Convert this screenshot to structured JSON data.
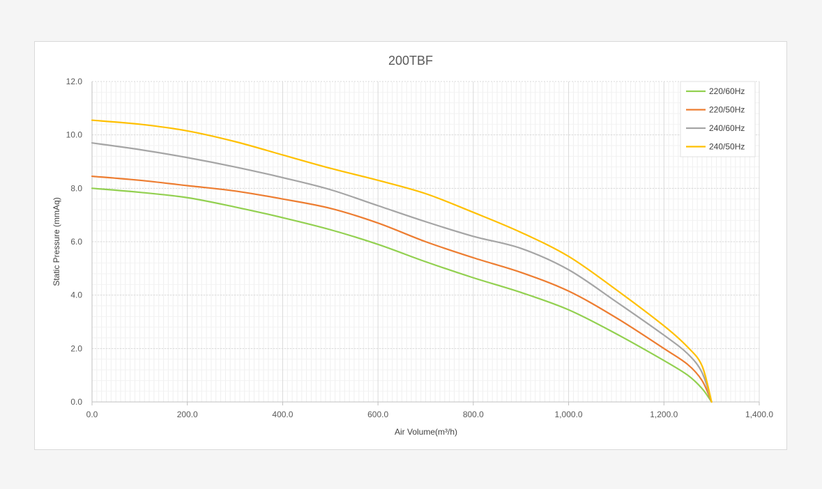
{
  "chart_data": {
    "type": "line",
    "title": "200TBF",
    "xlabel": "Air Volume(m³/h)",
    "ylabel": "Static Pressure (mmAq)",
    "xlim": [
      0,
      1400
    ],
    "ylim": [
      0,
      12
    ],
    "x_ticks": [
      "0.0",
      "200.0",
      "400.0",
      "600.0",
      "800.0",
      "1,000.0",
      "1,200.0",
      "1,400.0"
    ],
    "y_ticks": [
      "0.0",
      "2.0",
      "4.0",
      "6.0",
      "8.0",
      "10.0",
      "12.0"
    ],
    "grid": true,
    "legend_position": "top-right",
    "series": [
      {
        "name": "220/60Hz",
        "color": "#92d050",
        "points": [
          [
            0,
            8.0
          ],
          [
            100,
            7.85
          ],
          [
            200,
            7.65
          ],
          [
            300,
            7.3
          ],
          [
            400,
            6.9
          ],
          [
            500,
            6.45
          ],
          [
            600,
            5.9
          ],
          [
            700,
            5.25
          ],
          [
            800,
            4.65
          ],
          [
            900,
            4.1
          ],
          [
            1000,
            3.45
          ],
          [
            1100,
            2.55
          ],
          [
            1200,
            1.55
          ],
          [
            1250,
            1.0
          ],
          [
            1280,
            0.5
          ],
          [
            1300,
            0.0
          ]
        ]
      },
      {
        "name": "220/50Hz",
        "color": "#ed7d31",
        "points": [
          [
            0,
            8.45
          ],
          [
            100,
            8.3
          ],
          [
            200,
            8.1
          ],
          [
            300,
            7.9
          ],
          [
            400,
            7.6
          ],
          [
            500,
            7.25
          ],
          [
            600,
            6.7
          ],
          [
            700,
            6.0
          ],
          [
            800,
            5.4
          ],
          [
            900,
            4.85
          ],
          [
            1000,
            4.15
          ],
          [
            1100,
            3.15
          ],
          [
            1200,
            2.0
          ],
          [
            1250,
            1.4
          ],
          [
            1280,
            0.8
          ],
          [
            1300,
            0.0
          ]
        ]
      },
      {
        "name": "240/60Hz",
        "color": "#a5a5a5",
        "points": [
          [
            0,
            9.7
          ],
          [
            100,
            9.45
          ],
          [
            200,
            9.15
          ],
          [
            300,
            8.8
          ],
          [
            400,
            8.4
          ],
          [
            500,
            7.95
          ],
          [
            600,
            7.35
          ],
          [
            700,
            6.75
          ],
          [
            800,
            6.2
          ],
          [
            900,
            5.75
          ],
          [
            1000,
            4.95
          ],
          [
            1100,
            3.75
          ],
          [
            1200,
            2.5
          ],
          [
            1250,
            1.8
          ],
          [
            1280,
            1.1
          ],
          [
            1300,
            0.0
          ]
        ]
      },
      {
        "name": "240/50Hz",
        "color": "#ffc000",
        "points": [
          [
            0,
            10.55
          ],
          [
            100,
            10.4
          ],
          [
            200,
            10.15
          ],
          [
            300,
            9.75
          ],
          [
            400,
            9.25
          ],
          [
            500,
            8.75
          ],
          [
            600,
            8.3
          ],
          [
            700,
            7.8
          ],
          [
            800,
            7.1
          ],
          [
            900,
            6.35
          ],
          [
            1000,
            5.45
          ],
          [
            1100,
            4.2
          ],
          [
            1200,
            2.85
          ],
          [
            1250,
            2.05
          ],
          [
            1280,
            1.35
          ],
          [
            1300,
            0.0
          ]
        ]
      }
    ]
  }
}
